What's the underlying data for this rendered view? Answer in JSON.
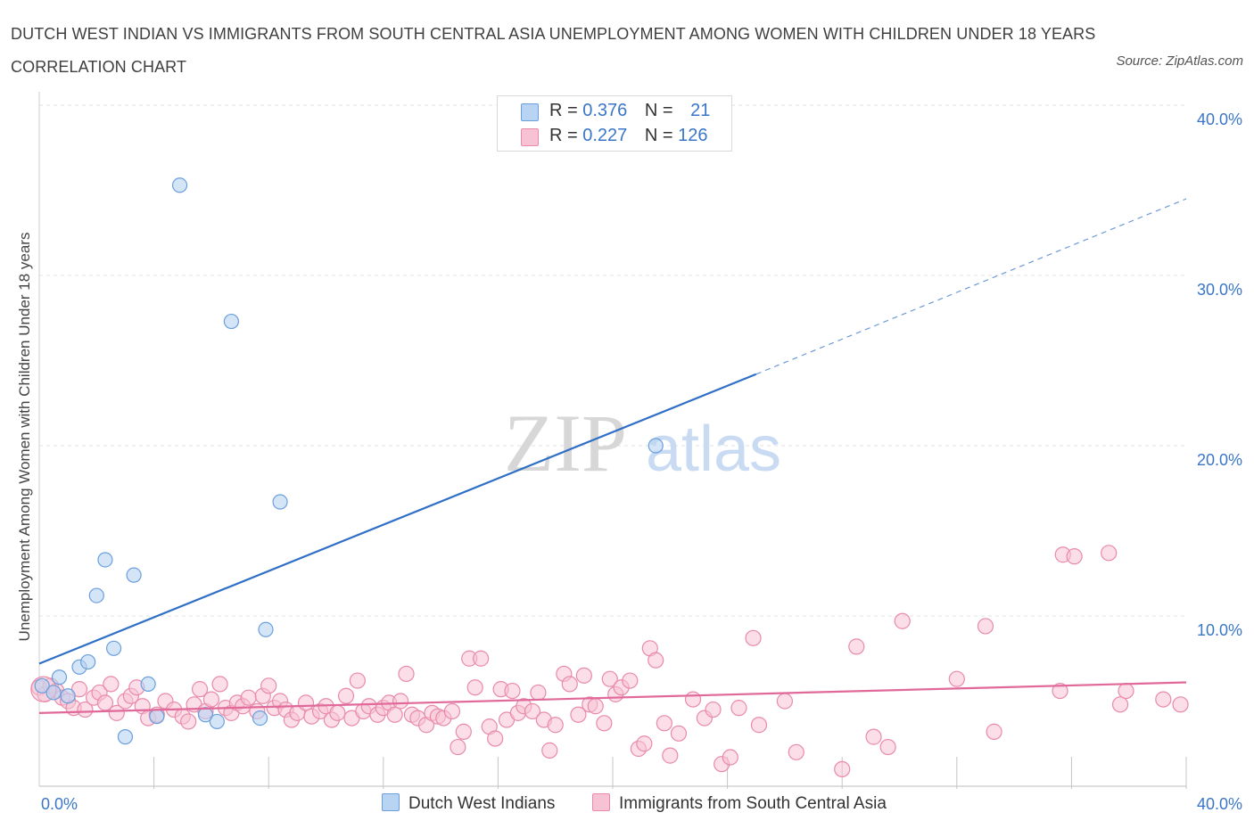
{
  "header": {
    "title": "DUTCH WEST INDIAN VS IMMIGRANTS FROM SOUTH CENTRAL ASIA UNEMPLOYMENT AMONG WOMEN WITH CHILDREN UNDER 18 YEARS CORRELATION CHART",
    "source": "Source: ZipAtlas.com"
  },
  "watermark": {
    "zip": "ZIP",
    "atlas": "atlas"
  },
  "colors": {
    "blue": "#6a9fdc",
    "blue_fill": "#b9d3f3",
    "blue_line": "#2f6fc6",
    "pink": "#e98aab",
    "pink_fill": "#f7c3d4",
    "pink_line": "#e0699a",
    "tick_label": "#3a76c8",
    "grid": "#e2e2e2"
  },
  "legend_top": {
    "rows": [
      {
        "r_label": "R = ",
        "r_value": "0.376",
        "n_label": "N = ",
        "n_value": "21",
        "color": "blue"
      },
      {
        "r_label": "R = ",
        "r_value": "0.227",
        "n_label": "N = ",
        "n_value": "126",
        "color": "pink"
      }
    ]
  },
  "legend_bottom": [
    {
      "label": "Dutch West Indians",
      "color": "blue"
    },
    {
      "label": "Immigrants from South Central Asia",
      "color": "pink"
    }
  ],
  "chart_data": {
    "type": "scatter",
    "title": "DUTCH WEST INDIAN VS IMMIGRANTS FROM SOUTH CENTRAL ASIA UNEMPLOYMENT AMONG WOMEN WITH CHILDREN UNDER 18 YEARS CORRELATION CHART",
    "xlabel": "",
    "ylabel": "Unemployment Among Women with Children Under 18 years",
    "xlim": [
      0,
      40
    ],
    "ylim": [
      0,
      40
    ],
    "x_tick_labels": [
      "0.0%",
      "40.0%"
    ],
    "y_ticks": [
      10,
      20,
      30,
      40
    ],
    "y_tick_labels": [
      "10.0%",
      "20.0%",
      "30.0%",
      "40.0%"
    ],
    "grid": true,
    "legend_position": "bottom",
    "series": [
      {
        "name": "Dutch West Indians",
        "r": 0.376,
        "n": 21,
        "trend": {
          "x0": 0,
          "y0": 7.2,
          "x1": 25,
          "y1": 24.2,
          "dashed_to_x": 40,
          "dashed_to_y": 34.5
        },
        "points": [
          [
            0.1,
            5.9
          ],
          [
            0.5,
            5.5
          ],
          [
            0.7,
            6.4
          ],
          [
            1.0,
            5.3
          ],
          [
            1.4,
            7.0
          ],
          [
            1.7,
            7.3
          ],
          [
            2.0,
            11.2
          ],
          [
            2.3,
            13.3
          ],
          [
            2.6,
            8.1
          ],
          [
            3.0,
            2.9
          ],
          [
            3.3,
            12.4
          ],
          [
            3.8,
            6.0
          ],
          [
            4.1,
            4.1
          ],
          [
            4.9,
            35.3
          ],
          [
            5.8,
            4.2
          ],
          [
            6.2,
            3.8
          ],
          [
            6.7,
            27.3
          ],
          [
            7.7,
            4.0
          ],
          [
            7.9,
            9.2
          ],
          [
            8.4,
            16.7
          ],
          [
            21.5,
            20.0
          ]
        ]
      },
      {
        "name": "Immigrants from South Central Asia",
        "r": 0.227,
        "n": 126,
        "trend": {
          "x0": 0,
          "y0": 4.3,
          "x1": 40,
          "y1": 6.1
        },
        "points": [
          [
            0.0,
            5.8
          ],
          [
            0.2,
            5.4
          ],
          [
            0.4,
            5.9
          ],
          [
            0.6,
            5.6
          ],
          [
            0.8,
            5.2
          ],
          [
            1.0,
            5.0
          ],
          [
            1.2,
            4.6
          ],
          [
            1.4,
            5.7
          ],
          [
            1.6,
            4.5
          ],
          [
            1.9,
            5.2
          ],
          [
            2.1,
            5.5
          ],
          [
            2.3,
            4.9
          ],
          [
            2.5,
            6.0
          ],
          [
            2.7,
            4.3
          ],
          [
            3.0,
            5.0
          ],
          [
            3.2,
            5.3
          ],
          [
            3.4,
            5.8
          ],
          [
            3.6,
            4.7
          ],
          [
            3.8,
            4.0
          ],
          [
            4.1,
            4.2
          ],
          [
            4.4,
            5.0
          ],
          [
            4.7,
            4.5
          ],
          [
            5.0,
            4.1
          ],
          [
            5.2,
            3.8
          ],
          [
            5.4,
            4.8
          ],
          [
            5.6,
            5.7
          ],
          [
            5.8,
            4.4
          ],
          [
            6.0,
            5.1
          ],
          [
            6.3,
            6.0
          ],
          [
            6.5,
            4.6
          ],
          [
            6.7,
            4.3
          ],
          [
            6.9,
            4.9
          ],
          [
            7.1,
            4.7
          ],
          [
            7.3,
            5.2
          ],
          [
            7.6,
            4.4
          ],
          [
            7.8,
            5.3
          ],
          [
            8.0,
            5.9
          ],
          [
            8.2,
            4.6
          ],
          [
            8.4,
            5.0
          ],
          [
            8.6,
            4.5
          ],
          [
            8.8,
            3.9
          ],
          [
            9.0,
            4.3
          ],
          [
            9.3,
            4.9
          ],
          [
            9.5,
            4.1
          ],
          [
            9.8,
            4.4
          ],
          [
            10.0,
            4.7
          ],
          [
            10.2,
            3.9
          ],
          [
            10.4,
            4.3
          ],
          [
            10.7,
            5.3
          ],
          [
            10.9,
            4.0
          ],
          [
            11.1,
            6.2
          ],
          [
            11.3,
            4.4
          ],
          [
            11.5,
            4.7
          ],
          [
            11.8,
            4.2
          ],
          [
            12.0,
            4.6
          ],
          [
            12.2,
            4.9
          ],
          [
            12.4,
            4.2
          ],
          [
            12.6,
            5.0
          ],
          [
            12.8,
            6.6
          ],
          [
            13.0,
            4.2
          ],
          [
            13.2,
            4.0
          ],
          [
            13.5,
            3.6
          ],
          [
            13.7,
            4.3
          ],
          [
            13.9,
            4.1
          ],
          [
            14.1,
            4.0
          ],
          [
            14.4,
            4.4
          ],
          [
            14.6,
            2.3
          ],
          [
            14.8,
            3.2
          ],
          [
            15.0,
            7.5
          ],
          [
            15.2,
            5.8
          ],
          [
            15.4,
            7.5
          ],
          [
            15.7,
            3.5
          ],
          [
            15.9,
            2.8
          ],
          [
            16.1,
            5.7
          ],
          [
            16.3,
            3.9
          ],
          [
            16.5,
            5.6
          ],
          [
            16.7,
            4.3
          ],
          [
            16.9,
            4.7
          ],
          [
            17.2,
            4.4
          ],
          [
            17.4,
            5.5
          ],
          [
            17.6,
            3.9
          ],
          [
            17.8,
            2.1
          ],
          [
            18.0,
            3.6
          ],
          [
            18.3,
            6.6
          ],
          [
            18.5,
            6.0
          ],
          [
            18.8,
            4.2
          ],
          [
            19.0,
            6.5
          ],
          [
            19.2,
            4.8
          ],
          [
            19.4,
            4.7
          ],
          [
            19.7,
            3.7
          ],
          [
            19.9,
            6.3
          ],
          [
            20.1,
            5.4
          ],
          [
            20.3,
            5.8
          ],
          [
            20.6,
            6.2
          ],
          [
            20.9,
            2.2
          ],
          [
            21.1,
            2.5
          ],
          [
            21.3,
            8.1
          ],
          [
            21.5,
            7.4
          ],
          [
            21.8,
            3.7
          ],
          [
            22.0,
            1.8
          ],
          [
            22.3,
            3.1
          ],
          [
            22.8,
            5.1
          ],
          [
            23.2,
            4.0
          ],
          [
            23.5,
            4.5
          ],
          [
            23.8,
            1.3
          ],
          [
            24.1,
            1.7
          ],
          [
            24.4,
            4.6
          ],
          [
            24.9,
            8.7
          ],
          [
            25.1,
            3.6
          ],
          [
            26.0,
            5.0
          ],
          [
            26.4,
            2.0
          ],
          [
            28.0,
            1.0
          ],
          [
            28.5,
            8.2
          ],
          [
            29.1,
            2.9
          ],
          [
            29.6,
            2.3
          ],
          [
            30.1,
            9.7
          ],
          [
            32.0,
            6.3
          ],
          [
            33.0,
            9.4
          ],
          [
            33.3,
            3.2
          ],
          [
            35.6,
            5.6
          ],
          [
            35.7,
            13.6
          ],
          [
            36.1,
            13.5
          ],
          [
            37.3,
            13.7
          ],
          [
            37.7,
            4.8
          ],
          [
            37.9,
            5.6
          ],
          [
            39.2,
            5.1
          ],
          [
            39.8,
            4.8
          ]
        ]
      }
    ]
  }
}
